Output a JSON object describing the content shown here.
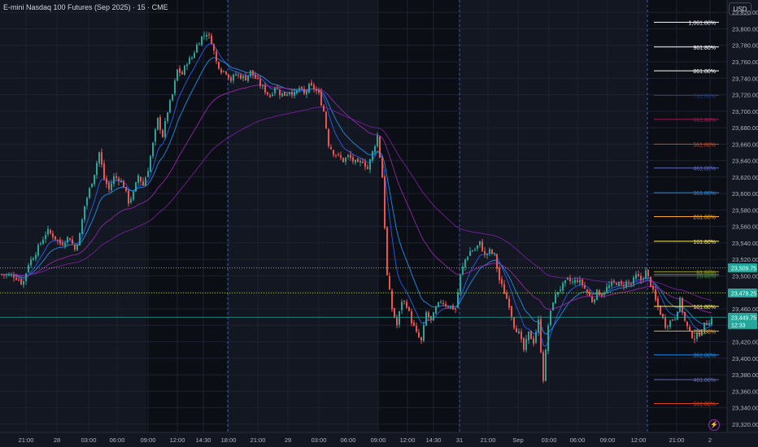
{
  "header": {
    "title": "E-mini Nasdaq 100 Futures (Sep 2025) · 15 · CME",
    "currency": "USD"
  },
  "chart_data": {
    "type": "candlestick",
    "symbol": "E-mini Nasdaq 100 Futures (Sep 2025)",
    "interval": "15",
    "exchange": "CME",
    "ylim": [
      23310,
      23835
    ],
    "y_ticks": [
      23320,
      23340,
      23360,
      23380,
      23400,
      23420,
      23440,
      23460,
      23480,
      23500,
      23520,
      23540,
      23560,
      23580,
      23600,
      23620,
      23640,
      23660,
      23680,
      23700,
      23720,
      23740,
      23760,
      23780,
      23800,
      23820
    ],
    "x_ticks": [
      {
        "label": "21:00",
        "x": 32
      },
      {
        "label": "28",
        "x": 70
      },
      {
        "label": "03:00",
        "x": 109
      },
      {
        "label": "06:00",
        "x": 144
      },
      {
        "label": "09:00",
        "x": 182
      },
      {
        "label": "12:00",
        "x": 218
      },
      {
        "label": "14:30",
        "x": 250
      },
      {
        "label": "18:00",
        "x": 281
      },
      {
        "label": "21:00",
        "x": 317
      },
      {
        "label": "29",
        "x": 354
      },
      {
        "label": "03:00",
        "x": 392
      },
      {
        "label": "06:00",
        "x": 428
      },
      {
        "label": "09:00",
        "x": 465
      },
      {
        "label": "12:00",
        "x": 501
      },
      {
        "label": "14:30",
        "x": 533
      },
      {
        "label": "31",
        "x": 565
      },
      {
        "label": "21:00",
        "x": 600
      },
      {
        "label": "Sep",
        "x": 637
      },
      {
        "label": "03:00",
        "x": 675
      },
      {
        "label": "06:00",
        "x": 710
      },
      {
        "label": "09:00",
        "x": 747
      },
      {
        "label": "12:00",
        "x": 785
      },
      {
        "label": "21:00",
        "x": 832
      },
      {
        "label": "2",
        "x": 873
      }
    ],
    "price_path": [
      [
        0,
        23502
      ],
      [
        18,
        23500
      ],
      [
        28,
        23490
      ],
      [
        35,
        23515
      ],
      [
        42,
        23525
      ],
      [
        50,
        23540
      ],
      [
        58,
        23555
      ],
      [
        66,
        23548
      ],
      [
        75,
        23538
      ],
      [
        85,
        23548
      ],
      [
        92,
        23532
      ],
      [
        98,
        23550
      ],
      [
        104,
        23585
      ],
      [
        110,
        23605
      ],
      [
        116,
        23625
      ],
      [
        122,
        23650
      ],
      [
        128,
        23618
      ],
      [
        134,
        23605
      ],
      [
        140,
        23620
      ],
      [
        146,
        23618
      ],
      [
        152,
        23610
      ],
      [
        158,
        23590
      ],
      [
        164,
        23600
      ],
      [
        170,
        23622
      ],
      [
        176,
        23610
      ],
      [
        182,
        23630
      ],
      [
        188,
        23660
      ],
      [
        194,
        23690
      ],
      [
        200,
        23670
      ],
      [
        206,
        23700
      ],
      [
        212,
        23720
      ],
      [
        218,
        23750
      ],
      [
        224,
        23745
      ],
      [
        230,
        23760
      ],
      [
        236,
        23765
      ],
      [
        242,
        23780
      ],
      [
        248,
        23790
      ],
      [
        254,
        23795
      ],
      [
        260,
        23785
      ],
      [
        266,
        23760
      ],
      [
        272,
        23750
      ],
      [
        278,
        23748
      ],
      [
        284,
        23738
      ],
      [
        290,
        23745
      ],
      [
        296,
        23742
      ],
      [
        302,
        23740
      ],
      [
        308,
        23748
      ],
      [
        314,
        23740
      ],
      [
        320,
        23732
      ],
      [
        326,
        23725
      ],
      [
        332,
        23718
      ],
      [
        338,
        23730
      ],
      [
        344,
        23722
      ],
      [
        350,
        23720
      ],
      [
        356,
        23725
      ],
      [
        362,
        23720
      ],
      [
        368,
        23728
      ],
      [
        374,
        23720
      ],
      [
        380,
        23730
      ],
      [
        386,
        23728
      ],
      [
        392,
        23720
      ],
      [
        398,
        23700
      ],
      [
        404,
        23660
      ],
      [
        410,
        23650
      ],
      [
        416,
        23645
      ],
      [
        422,
        23640
      ],
      [
        428,
        23645
      ],
      [
        434,
        23640
      ],
      [
        440,
        23635
      ],
      [
        446,
        23640
      ],
      [
        452,
        23630
      ],
      [
        458,
        23650
      ],
      [
        464,
        23670
      ],
      [
        470,
        23620
      ],
      [
        476,
        23500
      ],
      [
        482,
        23460
      ],
      [
        488,
        23440
      ],
      [
        494,
        23470
      ],
      [
        500,
        23465
      ],
      [
        506,
        23445
      ],
      [
        512,
        23430
      ],
      [
        518,
        23420
      ],
      [
        524,
        23455
      ],
      [
        530,
        23445
      ],
      [
        536,
        23460
      ],
      [
        542,
        23470
      ],
      [
        548,
        23465
      ],
      [
        554,
        23462
      ],
      [
        560,
        23460
      ],
      [
        566,
        23500
      ],
      [
        572,
        23520
      ],
      [
        578,
        23530
      ],
      [
        584,
        23532
      ],
      [
        590,
        23540
      ],
      [
        596,
        23525
      ],
      [
        602,
        23530
      ],
      [
        608,
        23525
      ],
      [
        614,
        23495
      ],
      [
        620,
        23480
      ],
      [
        626,
        23465
      ],
      [
        632,
        23440
      ],
      [
        638,
        23430
      ],
      [
        644,
        23410
      ],
      [
        650,
        23430
      ],
      [
        656,
        23420
      ],
      [
        662,
        23445
      ],
      [
        668,
        23375
      ],
      [
        674,
        23440
      ],
      [
        680,
        23470
      ],
      [
        686,
        23482
      ],
      [
        692,
        23488
      ],
      [
        698,
        23495
      ],
      [
        704,
        23492
      ],
      [
        710,
        23495
      ],
      [
        716,
        23490
      ],
      [
        722,
        23480
      ],
      [
        728,
        23470
      ],
      [
        734,
        23480
      ],
      [
        740,
        23478
      ],
      [
        746,
        23485
      ],
      [
        752,
        23490
      ],
      [
        758,
        23492
      ],
      [
        764,
        23488
      ],
      [
        770,
        23492
      ],
      [
        776,
        23490
      ],
      [
        782,
        23500
      ],
      [
        788,
        23495
      ],
      [
        794,
        23505
      ],
      [
        800,
        23490
      ],
      [
        806,
        23470
      ],
      [
        812,
        23455
      ],
      [
        818,
        23440
      ],
      [
        824,
        23445
      ],
      [
        830,
        23450
      ],
      [
        836,
        23470
      ],
      [
        842,
        23445
      ],
      [
        848,
        23430
      ],
      [
        854,
        23425
      ],
      [
        860,
        23430
      ],
      [
        866,
        23440
      ],
      [
        872,
        23445
      ],
      [
        876,
        23449
      ]
    ],
    "moving_averages": [
      {
        "color": "#2962ff",
        "period": "fast"
      },
      {
        "color": "#2196f3",
        "period": "medium"
      },
      {
        "color": "#9c27b0",
        "period": "slow"
      },
      {
        "color": "#7b1fa2",
        "period": "slower"
      }
    ],
    "fib_upper": [
      {
        "label": "1,061.80%",
        "value": 23808,
        "color": "#ffffff"
      },
      {
        "label": "961.80%",
        "value": 23778,
        "color": "#ffffff"
      },
      {
        "label": "861.80%",
        "value": 23749,
        "color": "#ffffff"
      },
      {
        "label": "761.80%",
        "value": 23719,
        "color": "#1e3a8a"
      },
      {
        "label": "661.80%",
        "value": 23690,
        "color": "#ad1457"
      },
      {
        "label": "561.80%",
        "value": 23660,
        "color": "#d84315"
      },
      {
        "label": "461.80%",
        "value": 23631,
        "color": "#5c6bc0"
      },
      {
        "label": "361.80%",
        "value": 23601,
        "color": "#1e88e5"
      },
      {
        "label": "261.80%",
        "value": 23572,
        "color": "#f9a825"
      },
      {
        "label": "161.80%",
        "value": 23542,
        "color": "#ffee58"
      },
      {
        "label": "61.80%",
        "value": 23505,
        "color": "#9e9d24"
      },
      {
        "label": "38.20%",
        "value": 23502,
        "color": "#558b2f"
      },
      {
        "label": "23.60%",
        "value": 23500,
        "color": "#2e7d32"
      }
    ],
    "fib_lower": [
      {
        "label": "161.80%",
        "value": 23463,
        "color": "#ffee58"
      },
      {
        "label": "261.80%",
        "value": 23433,
        "color": "#f9a825"
      },
      {
        "label": "361.80%",
        "value": 23404,
        "color": "#1e88e5"
      },
      {
        "label": "461.80%",
        "value": 23374,
        "color": "#5c6bc0"
      },
      {
        "label": "561.80%",
        "value": 23345,
        "color": "#d84315"
      }
    ],
    "price_markers": [
      {
        "label": "23,509.75",
        "value": 23509.75,
        "color": "#26a69a",
        "line": "dotted",
        "line_color": "#b5e61d"
      },
      {
        "label": "23,479.25",
        "value": 23479.25,
        "color": "#26a69a",
        "line": "dotted",
        "line_color": "#b5e61d"
      },
      {
        "label": "23,449.75",
        "sub": "12:33",
        "value": 23449.75,
        "color": "#26a69a",
        "line": "solid",
        "line_color": "#26a69a"
      }
    ],
    "session_separators_x": [
      280,
      565,
      796
    ],
    "colors": {
      "up": "#26a69a",
      "down": "#ef5350",
      "background": "#131722",
      "grid": "#1e2230",
      "axis_text": "#b2b5be"
    }
  }
}
